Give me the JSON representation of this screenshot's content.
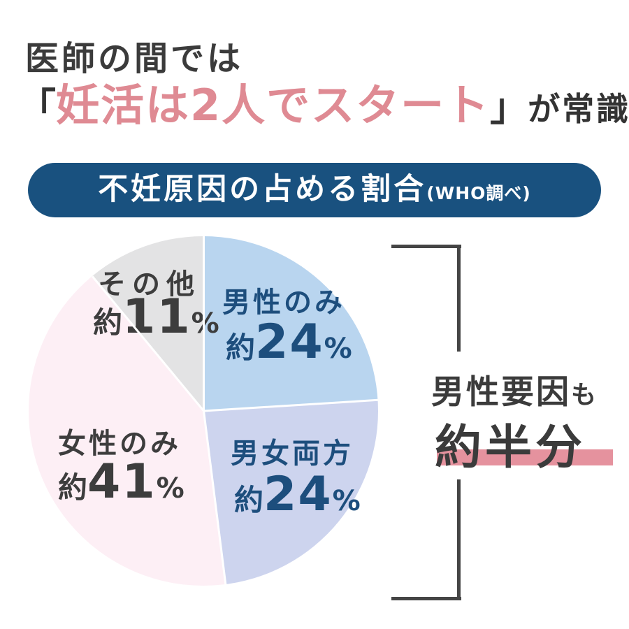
{
  "header": {
    "line1": "医師の間では",
    "open_bracket": "「",
    "highlight": "妊活は2人でスタート",
    "close_bracket": "」",
    "suffix": "が常識！",
    "highlight_color": "#df8a93",
    "text_color": "#3b3b3b"
  },
  "banner": {
    "title": "不妊原因の占める割合",
    "source": "(WHO調べ)",
    "background_color": "#19517f",
    "text_color": "#ffffff"
  },
  "chart_data": {
    "type": "pie",
    "title": "不妊原因の占める割合(WHO調べ)",
    "start_angle_deg": 0,
    "direction": "clockwise",
    "divider_color": "#ffffff",
    "slices": [
      {
        "label": "男性のみ",
        "prefix": "約",
        "number": "24",
        "unit": "%",
        "value": 24,
        "color": "#b9d5ef",
        "label_color": "#1d4e7d"
      },
      {
        "label": "男女両方",
        "prefix": "約",
        "number": "24",
        "unit": "%",
        "value": 24,
        "color": "#cdd4ee",
        "label_color": "#1d4e7d"
      },
      {
        "label": "女性のみ",
        "prefix": "約",
        "number": "41",
        "unit": "%",
        "value": 41,
        "color": "#fdeff5",
        "label_color": "#3d3d3d"
      },
      {
        "label": "その他",
        "prefix": "約",
        "number": "11",
        "unit": "%",
        "value": 11,
        "color": "#e3e3e4",
        "label_color": "#3d3d3d"
      }
    ],
    "annotation": "男性要因も約半分"
  },
  "annotation": {
    "line1_main": "男性要因",
    "line1_suffix": "も",
    "line2": "約半分",
    "highlight_color": "#e5929e",
    "bracket_color": "#454545"
  }
}
